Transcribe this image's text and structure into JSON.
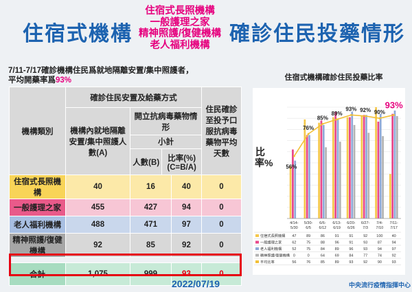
{
  "header": {
    "title_left": "住宿式機構",
    "title_mid": [
      "住宿式長照機構",
      "一般護理之家",
      "精神照護/復健機構",
      "老人福利機構"
    ],
    "title_right": "確診住民投藥情形"
  },
  "note": {
    "line1": "7/11-7/17確診機構住民爲就地隔離安置/集中照護者，",
    "line2_prefix": "平均開藥率爲",
    "line2_value": "93%"
  },
  "table": {
    "col_type": "機構類別",
    "col_group": "確診住民安置及給藥方式",
    "col_count": "機構內就地隔離安置/集中照護人數(A)",
    "col_med_group": "開立抗病毒藥物情形",
    "col_subtotal": "小計",
    "col_people": "人數(B)",
    "col_ratio": "比率(%)(C=B/A)",
    "col_days": "住民確診至投予口服抗病毒藥物平均天數",
    "rows": [
      {
        "name": "住宿式長照機構",
        "a": "40",
        "b": "16",
        "c": "40",
        "d": "0"
      },
      {
        "name": "一般護理之家",
        "a": "455",
        "b": "427",
        "c": "94",
        "d": "0"
      },
      {
        "name": "老人福利機構",
        "a": "488",
        "b": "471",
        "c": "97",
        "d": "0"
      },
      {
        "name": "精神照護/復健機構",
        "a": "92",
        "b": "85",
        "c": "92",
        "d": "0"
      }
    ],
    "total": {
      "name": "合計",
      "a": "1,075",
      "b": "999",
      "c": "93",
      "d": "0"
    }
  },
  "date": "2022/07/19",
  "footer": "中央流行疫情指揮中心",
  "chart_data": {
    "type": "bar",
    "title": "住宿式機構確診住民投藥比率",
    "ylabel": "比率%",
    "categories": [
      "4/14-5/30",
      "5/30-6/5",
      "6/6-6/12",
      "6/13-6/19",
      "6/20-6/26",
      "6/27-7/3",
      "7/4-7/10",
      "7/11-7/17"
    ],
    "ylim": [
      0,
      100
    ],
    "grid": true,
    "series": [
      {
        "name": "住宿式長照機構",
        "color": "#f5c84c",
        "values": [
          47,
          89,
          86,
          91,
          91,
          92,
          100,
          40
        ]
      },
      {
        "name": "一般護理之家",
        "color": "#e8478a",
        "values": [
          62,
          75,
          88,
          96,
          91,
          93,
          87,
          94
        ]
      },
      {
        "name": "老人福利機構",
        "color": "#8fa9d8",
        "values": [
          52,
          75,
          84,
          89,
          96,
          93,
          94,
          97
        ]
      },
      {
        "name": "精神照護/復健機構",
        "color": "#b3b3b3",
        "values": [
          0,
          0,
          64,
          69,
          84,
          77,
          74,
          92
        ]
      }
    ],
    "line": {
      "name": "平均比率",
      "color": "#f2c037",
      "values": [
        56,
        76,
        85,
        89,
        93,
        92,
        90,
        93
      ]
    },
    "line_labels": [
      "56%",
      "76%",
      "85%",
      "89%",
      "93%",
      "92%",
      "90%",
      "93%"
    ],
    "highlight_label_color": "#e6007e"
  }
}
